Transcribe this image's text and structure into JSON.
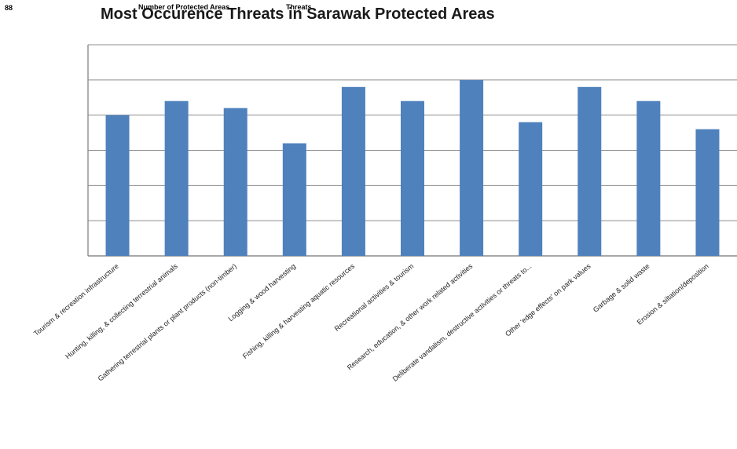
{
  "window": {
    "corner_label": "88"
  },
  "overlap_labels": {
    "number_label": "Number of Protected Areas",
    "threats_label": "Threats"
  },
  "chart_data": {
    "type": "bar",
    "title": "Most Occurence Threats in Sarawak Protected Areas",
    "xlabel": "",
    "ylabel": "",
    "ylim": [
      0,
      6
    ],
    "grid": true,
    "legend": "none",
    "bar_color": "#4f81bd",
    "categories": [
      "Tourism & recreation infrastructure",
      "Hunting, killing, & collecting terrestrial animals",
      "Gathering terrestrial plants or plant products (non-timber)",
      "Logging & wood harvesting",
      "Fishing, killing & harvesting aquatic resources",
      "Recreational activities & tourism",
      "Research, education, & other work related  activities",
      "Deliberate vandalism, destructive activities or threats to...",
      "Other 'edge effects' on park values",
      "Garbage & solid waste",
      "Erosion & siltation/deposition"
    ],
    "values": [
      4.0,
      4.4,
      4.2,
      3.2,
      4.8,
      4.4,
      5.0,
      3.8,
      4.8,
      4.4,
      3.6
    ]
  }
}
